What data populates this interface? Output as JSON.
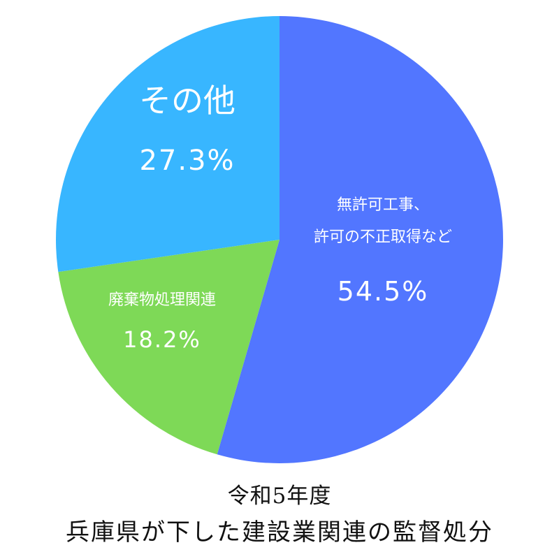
{
  "chart_data": {
    "type": "pie",
    "slices": [
      {
        "label_lines": [
          "無許可工事、",
          "許可の不正取得など"
        ],
        "value": 54.5,
        "value_label": "54.5%",
        "color": "#5276ff"
      },
      {
        "label_lines": [
          "廃棄物処理関連"
        ],
        "value": 18.2,
        "value_label": "18.2%",
        "color": "#7ed957"
      },
      {
        "label_lines": [
          "その他"
        ],
        "value": 27.3,
        "value_label": "27.3%",
        "color": "#38b6ff"
      }
    ],
    "start_angle_deg": 0,
    "direction": "clockwise",
    "legend": "none"
  },
  "caption": {
    "line1": "令和5年度",
    "line2": "兵庫県が下した建設業関連の監督処分"
  }
}
